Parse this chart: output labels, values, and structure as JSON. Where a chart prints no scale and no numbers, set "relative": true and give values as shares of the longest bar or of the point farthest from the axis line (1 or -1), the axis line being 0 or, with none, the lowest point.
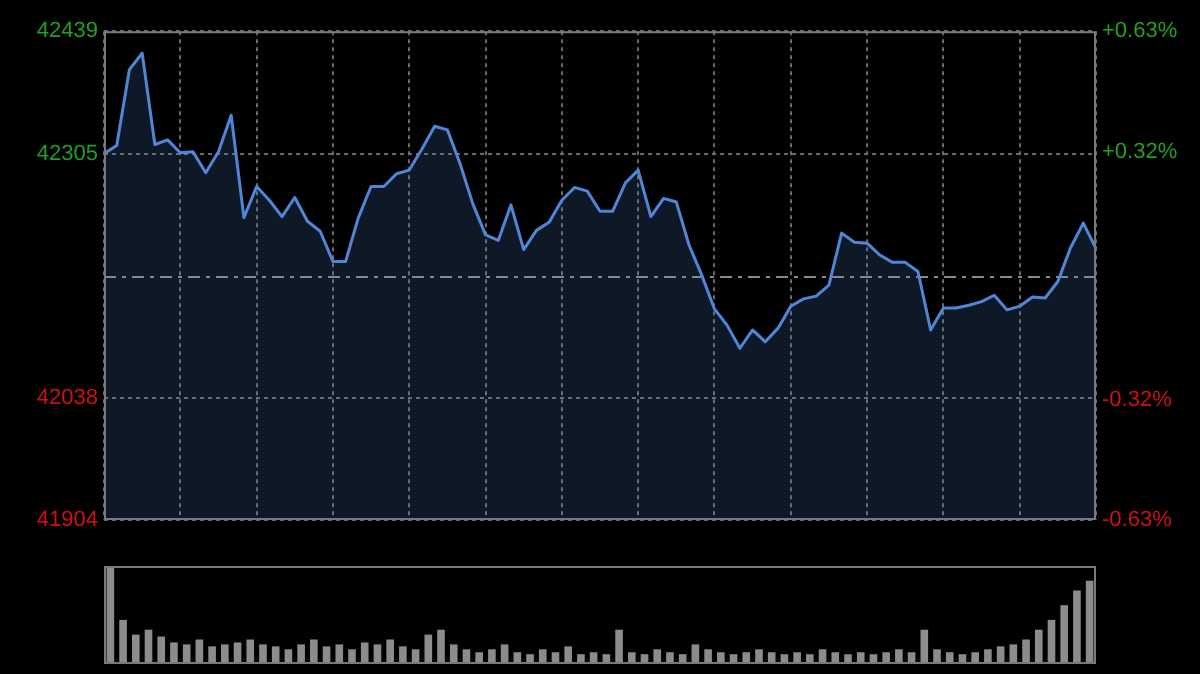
{
  "chart_data": [
    {
      "type": "area",
      "categories": [
        null,
        null,
        null,
        null,
        null,
        null,
        null,
        null,
        null,
        null,
        null,
        null,
        null,
        null,
        null,
        null,
        null,
        null,
        null,
        null,
        null,
        null,
        null,
        null,
        null,
        null,
        null,
        null,
        null,
        null,
        null,
        null,
        null,
        null,
        null,
        null,
        null,
        null,
        null,
        null,
        null,
        null,
        null,
        null,
        null,
        null,
        null,
        null,
        null,
        null,
        null,
        null,
        null,
        null,
        null,
        null,
        null,
        null,
        null,
        null,
        null,
        null,
        null,
        null,
        null,
        null,
        null,
        null,
        null,
        null,
        null,
        null,
        null,
        null,
        null,
        null,
        null,
        null,
        null
      ],
      "ylim": [
        41904,
        42439
      ],
      "yticks": [
        41904,
        42038,
        42305,
        42439
      ],
      "y2lim": [
        -0.63,
        0.63
      ],
      "y2ticks": [
        {
          "value": -0.63,
          "label": "-0.63%"
        },
        {
          "value": -0.32,
          "label": "-0.32%"
        },
        {
          "value": 0.32,
          "label": "+0.32%"
        },
        {
          "value": 0.63,
          "label": "+0.63%"
        }
      ],
      "grid": true,
      "tick_labels": "y",
      "ref_lines": [
        {
          "axis": "y",
          "value": 42171.5,
          "label": null,
          "color": "#8a8a8a",
          "line_style": "dashed"
        }
      ],
      "series": [
        {
          "color": "#4f86d6",
          "values": [
            42305,
            42314,
            42397,
            42415,
            42315,
            42320,
            42306,
            42307,
            42284,
            42307,
            42347,
            42235,
            42269,
            42254,
            42236,
            42257,
            42231,
            42220,
            42187,
            42187,
            42235,
            42269,
            42269,
            42283,
            42287,
            42310,
            42335,
            42331,
            42294,
            42250,
            42216,
            42210,
            42249,
            42200,
            42221,
            42230,
            42254,
            42268,
            42264,
            42242,
            42242,
            42273,
            42287,
            42236,
            42256,
            42252,
            42205,
            42172,
            42135,
            42117,
            42092,
            42112,
            42099,
            42114,
            42138,
            42146,
            42149,
            42161,
            42218,
            42208,
            42207,
            42194,
            42186,
            42186,
            42176,
            42112,
            42136,
            42136,
            42139,
            42143,
            42150,
            42134,
            42138,
            42148,
            42147,
            42165,
            42202,
            42229,
            42201
          ]
        }
      ]
    },
    {
      "type": "bar",
      "relative": true,
      "color": "#8c8c8c",
      "categories": [
        null,
        null,
        null,
        null,
        null,
        null,
        null,
        null,
        null,
        null,
        null,
        null,
        null,
        null,
        null,
        null,
        null,
        null,
        null,
        null,
        null,
        null,
        null,
        null,
        null,
        null,
        null,
        null,
        null,
        null,
        null,
        null,
        null,
        null,
        null,
        null,
        null,
        null,
        null,
        null,
        null,
        null,
        null,
        null,
        null,
        null,
        null,
        null,
        null,
        null,
        null,
        null,
        null,
        null,
        null,
        null,
        null,
        null,
        null,
        null,
        null,
        null,
        null,
        null,
        null,
        null,
        null,
        null,
        null,
        null,
        null,
        null,
        null,
        null,
        null,
        null,
        null,
        null
      ],
      "values": [
        1,
        0.45,
        0.3,
        0.35,
        0.28,
        0.22,
        0.2,
        0.25,
        0.18,
        0.2,
        0.22,
        0.25,
        0.2,
        0.18,
        0.15,
        0.2,
        0.25,
        0.18,
        0.2,
        0.15,
        0.22,
        0.2,
        0.25,
        0.18,
        0.15,
        0.3,
        0.35,
        0.2,
        0.15,
        0.12,
        0.15,
        0.2,
        0.12,
        0.1,
        0.15,
        0.12,
        0.18,
        0.1,
        0.12,
        0.1,
        0.35,
        0.12,
        0.1,
        0.15,
        0.12,
        0.1,
        0.2,
        0.15,
        0.12,
        0.1,
        0.12,
        0.15,
        0.12,
        0.1,
        0.12,
        0.1,
        0.15,
        0.12,
        0.1,
        0.12,
        0.1,
        0.12,
        0.15,
        0.12,
        0.35,
        0.15,
        0.12,
        0.1,
        0.12,
        0.15,
        0.18,
        0.2,
        0.25,
        0.35,
        0.45,
        0.6,
        0.75,
        0.85
      ]
    }
  ]
}
